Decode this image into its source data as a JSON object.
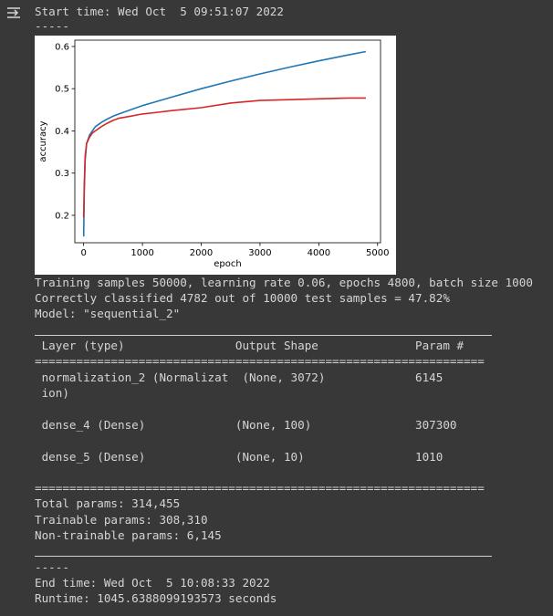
{
  "start_line": "Start time: Wed Oct  5 09:51:07 2022",
  "dashes": "-----",
  "chart_data": {
    "type": "line",
    "xlabel": "epoch",
    "ylabel": "accuracy",
    "xlim": [
      -150,
      5050
    ],
    "ylim": [
      0.135,
      0.615
    ],
    "xticks": [
      "0",
      "1000",
      "2000",
      "3000",
      "4000",
      "5000"
    ],
    "yticks": [
      "0.2",
      "0.3",
      "0.4",
      "0.5",
      "0.6"
    ],
    "grid": false,
    "series": [
      {
        "color": "#1f77b4",
        "x": [
          0,
          10,
          25,
          50,
          100,
          150,
          200,
          300,
          400,
          500,
          600,
          800,
          1000,
          1200,
          1500,
          2000,
          2500,
          3000,
          3500,
          4000,
          4500,
          4800
        ],
        "y": [
          0.15,
          0.25,
          0.33,
          0.37,
          0.39,
          0.4,
          0.41,
          0.42,
          0.428,
          0.435,
          0.44,
          0.45,
          0.46,
          0.468,
          0.48,
          0.5,
          0.518,
          0.535,
          0.551,
          0.566,
          0.58,
          0.588
        ]
      },
      {
        "color": "#d62728",
        "x": [
          0,
          10,
          25,
          50,
          100,
          150,
          200,
          300,
          400,
          500,
          600,
          800,
          1000,
          1200,
          1500,
          2000,
          2500,
          3000,
          3500,
          4000,
          4500,
          4800
        ],
        "y": [
          0.195,
          0.27,
          0.34,
          0.37,
          0.385,
          0.395,
          0.4,
          0.41,
          0.418,
          0.425,
          0.43,
          0.435,
          0.44,
          0.443,
          0.448,
          0.455,
          0.466,
          0.472,
          0.474,
          0.476,
          0.478,
          0.478
        ]
      }
    ]
  },
  "summary_lines": [
    "Training samples 50000, learning rate 0.06, epochs 4800, batch size 1000",
    "Correctly classified 4782 out of 10000 test samples = 47.82%",
    "Model: \"sequential_2\""
  ],
  "table": {
    "header": " Layer (type)                Output Shape              Param #",
    "double_rule": "=================================================================",
    "rows": [
      " normalization_2 (Normalizat  (None, 3072)             6145",
      " ion)",
      " dense_4 (Dense)             (None, 100)               307300",
      " dense_5 (Dense)             (None, 10)                1010"
    ]
  },
  "param_lines": [
    "Total params: 314,455",
    "Trainable params: 308,310",
    "Non-trainable params: 6,145"
  ],
  "end_line": "End time: Wed Oct  5 10:08:33 2022",
  "runtime_line": "Runtime: 1045.6388099193573 seconds"
}
